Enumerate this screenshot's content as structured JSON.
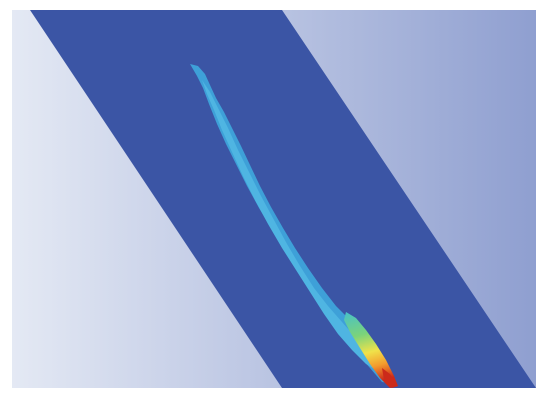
{
  "scene": {
    "background_gradient_left": "#e4e9f4",
    "background_gradient_right": "#8f9fd0",
    "band_color": "#3b55a5",
    "plume_outer_color": "#3ea0d8",
    "plume_inner_color": "#4fb5e2",
    "jet_colors": [
      "#47c1c9",
      "#7bd37a",
      "#f0e24a",
      "#f39a2d",
      "#cc2a1a"
    ]
  },
  "icons": {
    "plume": "contour-plume-icon"
  }
}
